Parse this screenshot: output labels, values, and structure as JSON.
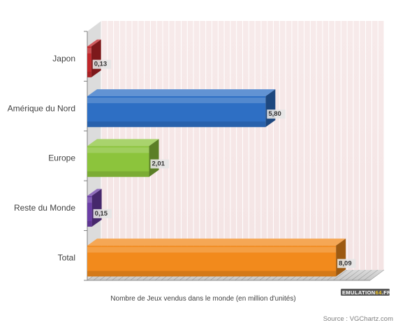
{
  "chart_data": {
    "type": "bar",
    "orientation": "horizontal",
    "categories": [
      "Japon",
      "Amérique du Nord",
      "Europe",
      "Reste du Monde",
      "Total"
    ],
    "values": [
      0.13,
      5.8,
      2.01,
      0.15,
      8.09
    ],
    "value_labels": [
      "0,13",
      "5,80",
      "2,01",
      "0,15",
      "8,09"
    ],
    "colors": [
      "#c0262a",
      "#2e6fc4",
      "#8cc43c",
      "#6b3ea6",
      "#f28a1c"
    ],
    "xlabel": "Nombre de Jeux vendus dans le monde (en million d'unités)",
    "xlim": [
      0,
      9.2
    ],
    "grid": true,
    "style": "3d"
  },
  "source": "Source : VGChartz.com",
  "logo": {
    "text_left": "EMULATION",
    "text_mid": "64",
    "text_right": ".FR"
  }
}
